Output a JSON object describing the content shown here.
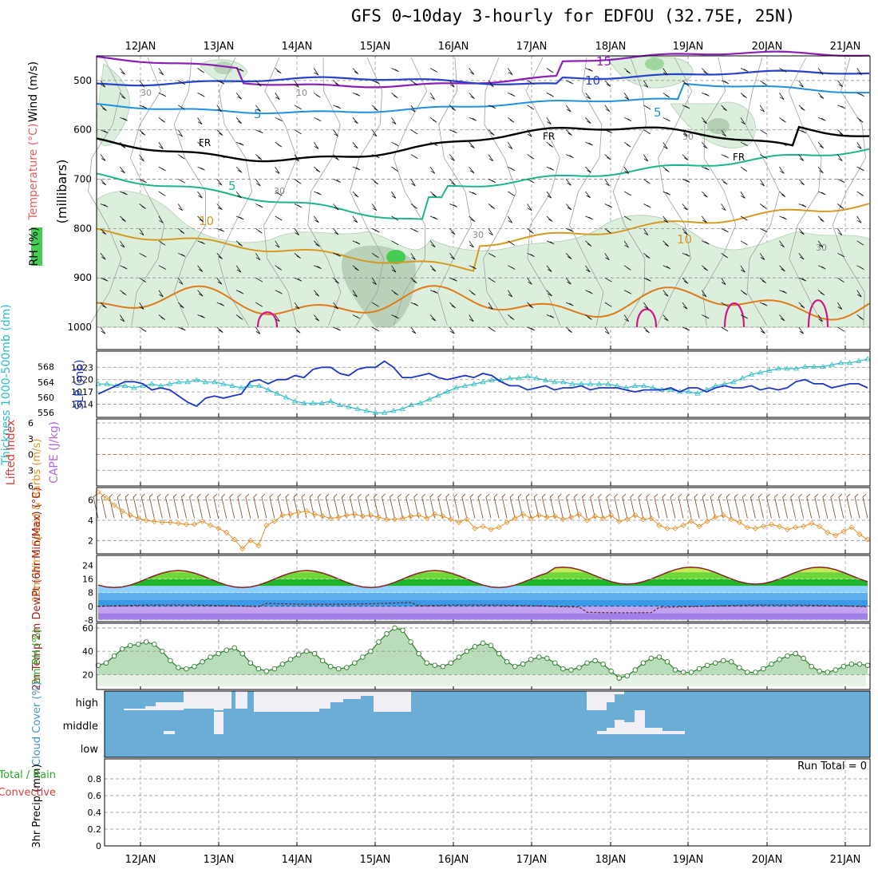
{
  "title": "GFS 0~10day 3-hourly for EDFOU (32.75E, 25N)",
  "days": [
    "12JAN",
    "13JAN",
    "14JAN",
    "15JAN",
    "16JAN",
    "17JAN",
    "18JAN",
    "19JAN",
    "20JAN",
    "21JAN"
  ],
  "colors": {
    "rh_fill": "#dcefdc",
    "rh_dark": "#9ab89a",
    "t15": "#8a1fb8",
    "t10": "#2742cf",
    "t5": "#1e90e0",
    "fr": "#000000",
    "tp5": "#1bb58c",
    "tp10": "#d49a22",
    "tp15": "#e07a18",
    "tp20": "#d1168a",
    "slp": "#1d35c9",
    "thick": "#2bbcc4",
    "wind10": "#e0922a",
    "rh2m": "#2aa52a",
    "cloud": "#6aadd5",
    "cloud_clear": "#f2eef6"
  },
  "chart_data": [
    {
      "type": "heatmap",
      "name_panel": "upper-air",
      "ylabel_main": "(millibars)",
      "ylabel_side_labels": [
        "Wind (m/s)",
        "Temperature (°C)",
        "RH (%)"
      ],
      "y_ticks": [
        "500",
        "600",
        "700",
        "800",
        "900",
        "1000"
      ],
      "contour_labels": [
        "15",
        "10",
        "5",
        "FR",
        "5",
        "10",
        "10",
        "30",
        "30",
        "30",
        "10",
        "30",
        "10",
        "30"
      ],
      "ylim": [
        450,
        1000
      ]
    },
    {
      "type": "line",
      "name_panel": "slp-thickness",
      "ylabel_left": "Thickness 1000-500mb (dm)",
      "ylabel_right": "SLP (mb)",
      "thick_ticks": [
        "556",
        "560",
        "564",
        "568"
      ],
      "slp_ticks": [
        "1014",
        "1017",
        "1020",
        "1023"
      ],
      "slp_ylim": [
        1011,
        1025
      ],
      "thick_ylim": [
        555,
        570
      ],
      "series": [
        {
          "name": "SLP",
          "values": [
            1016.5,
            1017.5,
            1018.5,
            1019.5,
            1019.5,
            1019,
            1017.5,
            1018,
            1017.5,
            1016,
            1014.5,
            1013.5,
            1015.5,
            1016,
            1015.5,
            1016,
            1016.5,
            1019.5,
            1020,
            1019,
            1020,
            1020,
            1021,
            1020.5,
            1022.5,
            1023,
            1023,
            1021.5,
            1021,
            1022.5,
            1023,
            1023,
            1024.5,
            1023,
            1020.5,
            1020.5,
            1021,
            1021.5,
            1020.5,
            1020,
            1020.5,
            1021,
            1020.5,
            1021.5,
            1021,
            1019.5,
            1018.5,
            1018.5,
            1017.5,
            1018,
            1018.5,
            1017.5,
            1018,
            1018,
            1018.5,
            1017.5,
            1018,
            1018,
            1018,
            1017.5,
            1017,
            1017.5,
            1017.5,
            1017.5,
            1018,
            1017,
            1018,
            1018,
            1017,
            1018,
            1018.5,
            1018,
            1018,
            1018.5,
            1017.5,
            1018,
            1017.5,
            1018,
            1019.5,
            1020,
            1019,
            1019,
            1018,
            1018.5,
            1019,
            1019,
            1018
          ]
        },
        {
          "name": "Thickness",
          "values": [
            563.5,
            563.5,
            563,
            563,
            562.5,
            563,
            563.5,
            563,
            563.5,
            564,
            564,
            564.5,
            564,
            564,
            563.5,
            563,
            562.5,
            563,
            563,
            562,
            561,
            560,
            559,
            558.5,
            558.5,
            558.5,
            559,
            558,
            557.5,
            557,
            556.5,
            556,
            556,
            556.5,
            557,
            558,
            558.5,
            559.5,
            560.5,
            561.5,
            562.5,
            563,
            563.5,
            564,
            564.5,
            564.5,
            565,
            565,
            565.5,
            565,
            564.5,
            564,
            564,
            563.5,
            563.5,
            563.5,
            563.5,
            563.5,
            563,
            562.5,
            563,
            563,
            562.5,
            562,
            562,
            561.5,
            561.5,
            561,
            562,
            563,
            563.5,
            564,
            565,
            566,
            566.5,
            567,
            567.5,
            567.5,
            567.5,
            568,
            568,
            568,
            568.5,
            569,
            569,
            569.5,
            570
          ]
        }
      ]
    },
    {
      "type": "line",
      "name_panel": "cape-li",
      "ylabel_left": "Lifted Index",
      "ylabel_right": "CAPE (J/kg)",
      "y_ticks": [
        "-6",
        "-3",
        "0",
        "3",
        "6"
      ],
      "ylim": [
        -6,
        6
      ]
    },
    {
      "type": "line",
      "name_panel": "wind10m",
      "ylabel": "10m Wind Speed & Barbs (m/s)",
      "y_ticks": [
        "2",
        "4",
        "6"
      ],
      "ylim": [
        1,
        7
      ],
      "series": [
        {
          "name": "Speed",
          "values": [
            6.8,
            6.2,
            5.5,
            4.9,
            4.5,
            4.2,
            4,
            3.9,
            3.8,
            3.8,
            3.7,
            3.6,
            3.6,
            3.9,
            3.5,
            3.2,
            2.8,
            2.1,
            1.2,
            2,
            1.5,
            3.5,
            3.9,
            4.5,
            4.6,
            4.8,
            4.9,
            4.6,
            4.4,
            4.2,
            4.3,
            4.5,
            4.6,
            4.4,
            4.5,
            4.3,
            4.1,
            4.1,
            4.2,
            4.4,
            4.5,
            4.2,
            4.6,
            4.4,
            4.1,
            3.8,
            4.1,
            3.2,
            3.4,
            3.1,
            3.3,
            3.8,
            4.2,
            4.6,
            4.2,
            4.5,
            4.3,
            4.4,
            4.1,
            4.3,
            4.6,
            4,
            4.4,
            4.2,
            4.5,
            3.9,
            4.1,
            4.5,
            4.1,
            4.2,
            3.5,
            3.2,
            3.2,
            3.5,
            3.9,
            3.4,
            3.9,
            4.3,
            4.5,
            4.1,
            3.8,
            3.3,
            3.2,
            3.4,
            3.6,
            3.4,
            3.1,
            3.3,
            3.4,
            3.7,
            3.4,
            2.8,
            2.5,
            2.9,
            3.3,
            2.6,
            2.1
          ]
        }
      ]
    },
    {
      "type": "area",
      "name_panel": "temp-dewpt",
      "ylabel": "2m Temp 2m DewPt (6hr Min/Max) (°C)",
      "y_ticks": [
        "-8",
        "0",
        "8",
        "16",
        "24"
      ],
      "ylim": [
        -9,
        28
      ]
    },
    {
      "type": "area",
      "name_panel": "rh2m",
      "ylabel": "2m RH (%)",
      "y_ticks": [
        "20",
        "40",
        "60"
      ],
      "ylim": [
        10,
        62
      ],
      "series": [
        {
          "name": "RH",
          "values": [
            28,
            30,
            36,
            42,
            45,
            46,
            48,
            46,
            40,
            32,
            26,
            25,
            27,
            31,
            35,
            38,
            41,
            43,
            38,
            30,
            25,
            23,
            25,
            29,
            33,
            37,
            40,
            38,
            32,
            27,
            25,
            26,
            30,
            35,
            40,
            48,
            55,
            60,
            58,
            48,
            38,
            30,
            28,
            27,
            30,
            35,
            40,
            44,
            47,
            45,
            38,
            31,
            27,
            29,
            33,
            35,
            34,
            30,
            25,
            24,
            26,
            30,
            32,
            29,
            23,
            17,
            19,
            24,
            30,
            34,
            35,
            31,
            24,
            22,
            22,
            25,
            28,
            30,
            32,
            31,
            26,
            22,
            22,
            25,
            29,
            33,
            36,
            38,
            34,
            27,
            23,
            22,
            24,
            27,
            29,
            29,
            28
          ]
        }
      ]
    },
    {
      "type": "bar",
      "name_panel": "cloud",
      "ylabel": "Cloud Cover (%)",
      "y_ticks": [
        "high",
        "middle",
        "low"
      ]
    },
    {
      "type": "line",
      "name_panel": "precip",
      "ylabel_left": "Total / Rain Convective",
      "ylabel_right": "3hr Precip (mm)",
      "y_ticks": [
        "0",
        "0.2",
        "0.4",
        "0.6",
        "0.8"
      ],
      "ylim": [
        0,
        1
      ],
      "run_total": "Run Total = 0"
    }
  ]
}
